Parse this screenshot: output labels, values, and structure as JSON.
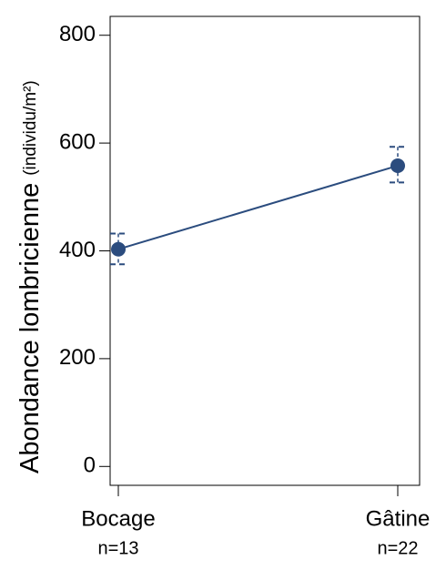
{
  "chart_data": {
    "type": "line",
    "ylabel": "Abondance lombricienne",
    "ylabel_unit": "(individu/m²)",
    "categories": [
      "Bocage",
      "Gâtine"
    ],
    "category_notes": [
      "n=13",
      "n=22"
    ],
    "series": [
      {
        "color": "#2b4c7e",
        "values": [
          403,
          558
        ],
        "lower": [
          375,
          527
        ],
        "upper": [
          432,
          593
        ]
      }
    ],
    "ylim": [
      -35,
      835
    ],
    "yticks": [
      0,
      200,
      400,
      600,
      800
    ]
  }
}
